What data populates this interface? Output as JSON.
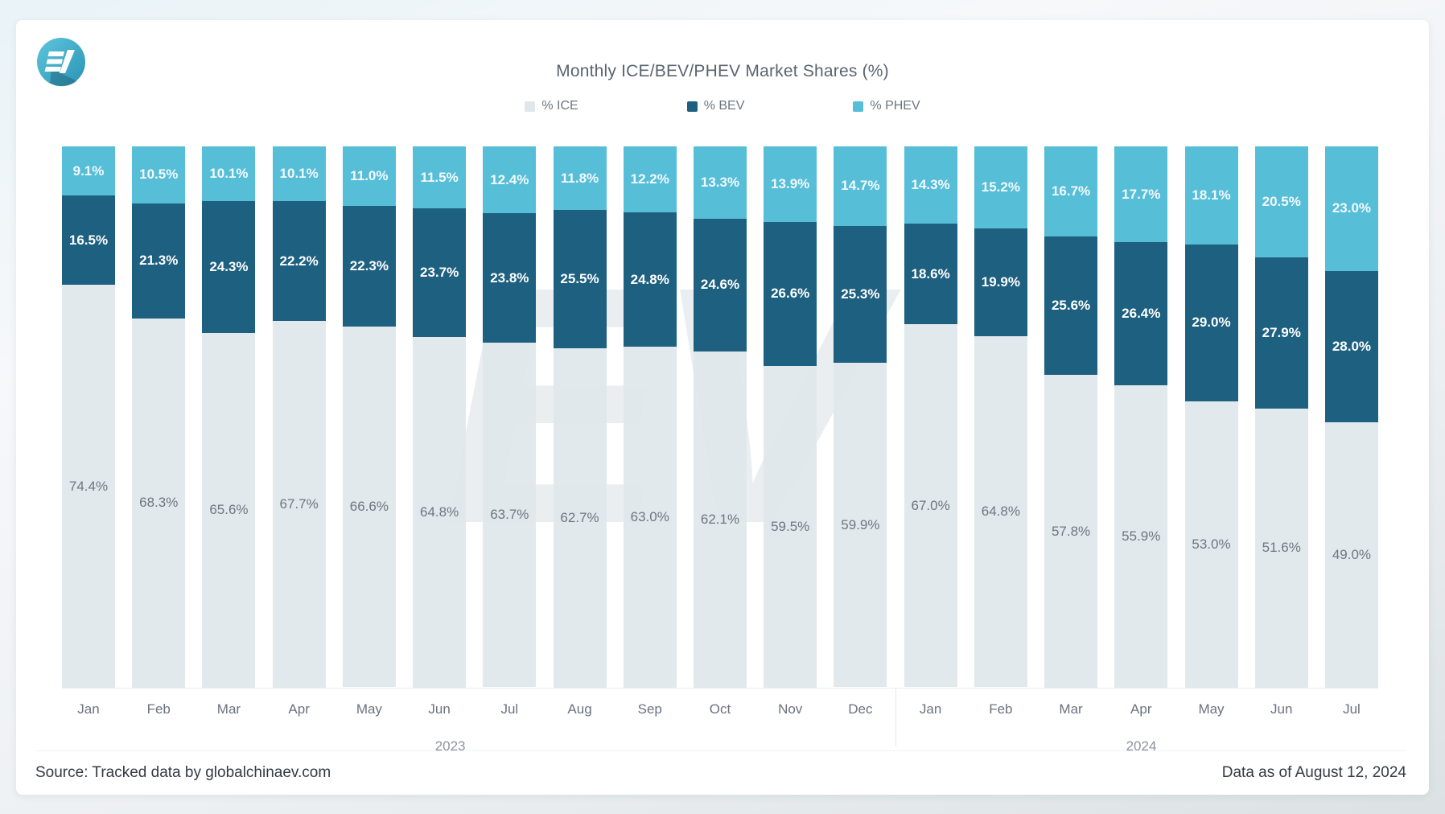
{
  "header": {
    "title": "Monthly ICE/BEV/PHEV Market Shares (%)",
    "logo_text": "EV"
  },
  "legend": [
    {
      "label": "% ICE",
      "color": "#e0e7ea"
    },
    {
      "label": "% BEV",
      "color": "#1d6080"
    },
    {
      "label": "% PHEV",
      "color": "#57bed8"
    }
  ],
  "chart_data": {
    "type": "bar",
    "stacked": true,
    "stack_order_top_to_bottom": [
      "PHEV",
      "BEV",
      "ICE"
    ],
    "categories": [
      "Jan",
      "Feb",
      "Mar",
      "Apr",
      "May",
      "Jun",
      "Jul",
      "Aug",
      "Sep",
      "Oct",
      "Nov",
      "Dec",
      "Jan",
      "Feb",
      "Mar",
      "Apr",
      "May",
      "Jun",
      "Jul"
    ],
    "year_groups": [
      {
        "label": "2023",
        "start_index": 0,
        "end_index": 11
      },
      {
        "label": "2024",
        "start_index": 12,
        "end_index": 18
      }
    ],
    "series": [
      {
        "name": "% ICE",
        "color": "#e0e7ea",
        "values": [
          74.4,
          68.3,
          65.6,
          67.7,
          66.6,
          64.8,
          63.7,
          62.7,
          63.0,
          62.1,
          59.5,
          59.9,
          67.0,
          64.8,
          57.8,
          55.9,
          53.0,
          51.6,
          49.0
        ]
      },
      {
        "name": "% BEV",
        "color": "#1d6080",
        "values": [
          16.5,
          21.3,
          24.3,
          22.2,
          22.3,
          23.7,
          23.8,
          25.5,
          24.8,
          24.6,
          26.6,
          25.3,
          18.6,
          19.9,
          25.6,
          26.4,
          29.0,
          27.9,
          28.0
        ]
      },
      {
        "name": "% PHEV",
        "color": "#57bed8",
        "values": [
          9.1,
          10.5,
          10.1,
          10.1,
          11.0,
          11.5,
          12.4,
          11.8,
          12.2,
          13.3,
          13.9,
          14.7,
          14.3,
          15.2,
          16.7,
          17.7,
          18.1,
          20.5,
          23.0
        ]
      }
    ],
    "title": "Monthly ICE/BEV/PHEV Market Shares (%)",
    "xlabel": "",
    "ylabel": "",
    "ylim": [
      0,
      100
    ],
    "grid": false,
    "legend_position": "top",
    "value_label_format": "0.0%"
  },
  "footer": {
    "source": "Source: Tracked data by globalchinaev.com",
    "date": "Data as of August 12, 2024"
  },
  "watermark_text": "EV"
}
